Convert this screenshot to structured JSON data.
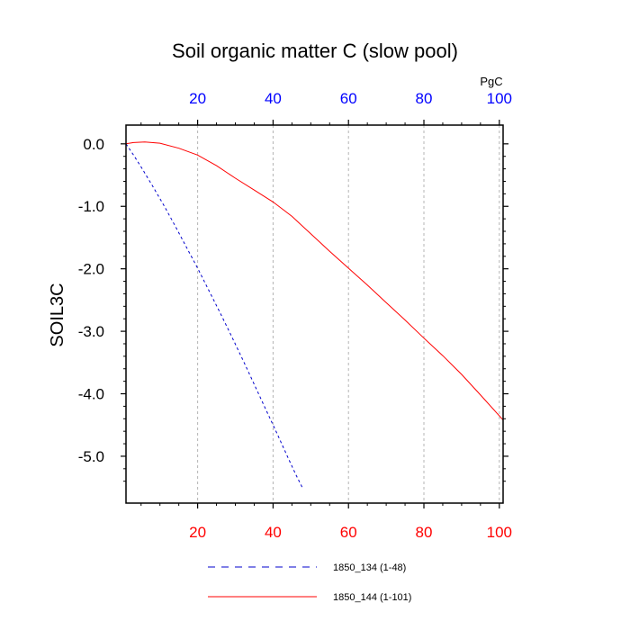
{
  "chart_data": {
    "type": "line",
    "title": "Soil organic matter C (slow pool)",
    "ylabel": "SOIL3C",
    "top_axis_unit": "PgC",
    "xlim": [
      1,
      101
    ],
    "ylim": [
      -5.75,
      0.3
    ],
    "x_ticks_major": [
      20,
      40,
      60,
      80,
      100
    ],
    "x_tick_labels": [
      "20",
      "40",
      "60",
      "80",
      "100"
    ],
    "y_ticks_major": [
      0,
      -1,
      -2,
      -3,
      -4,
      -5
    ],
    "y_tick_labels": [
      "0.0",
      "-1.0",
      "-2.0",
      "-3.0",
      "-4.0",
      "-5.0"
    ],
    "grid": {
      "x": true,
      "y": false
    },
    "legend_position": "bottom",
    "series": [
      {
        "name": "1850_134 (1-48)",
        "color": "#0000cc",
        "dash": "dashed",
        "axis_label_color": "#0000ff",
        "x": [
          1,
          3,
          5,
          8,
          11,
          14,
          17,
          20,
          23,
          26,
          29,
          32,
          35,
          38,
          41,
          44,
          46,
          48
        ],
        "y": [
          0.0,
          -0.18,
          -0.37,
          -0.67,
          -0.98,
          -1.31,
          -1.65,
          -1.99,
          -2.35,
          -2.71,
          -3.08,
          -3.46,
          -3.85,
          -4.24,
          -4.63,
          -5.03,
          -5.29,
          -5.53
        ]
      },
      {
        "name": "1850_144 (1-101)",
        "color": "#ff0000",
        "dash": "solid",
        "axis_label_color": "#ff0000",
        "x": [
          1,
          3,
          6,
          10,
          15,
          20,
          25,
          30,
          35,
          40,
          45,
          50,
          55,
          60,
          65,
          70,
          75,
          80,
          85,
          90,
          95,
          101
        ],
        "y": [
          0.0,
          0.02,
          0.03,
          0.01,
          -0.07,
          -0.18,
          -0.35,
          -0.55,
          -0.74,
          -0.93,
          -1.16,
          -1.44,
          -1.72,
          -1.99,
          -2.26,
          -2.54,
          -2.82,
          -3.11,
          -3.39,
          -3.69,
          -4.02,
          -4.42
        ]
      }
    ]
  }
}
